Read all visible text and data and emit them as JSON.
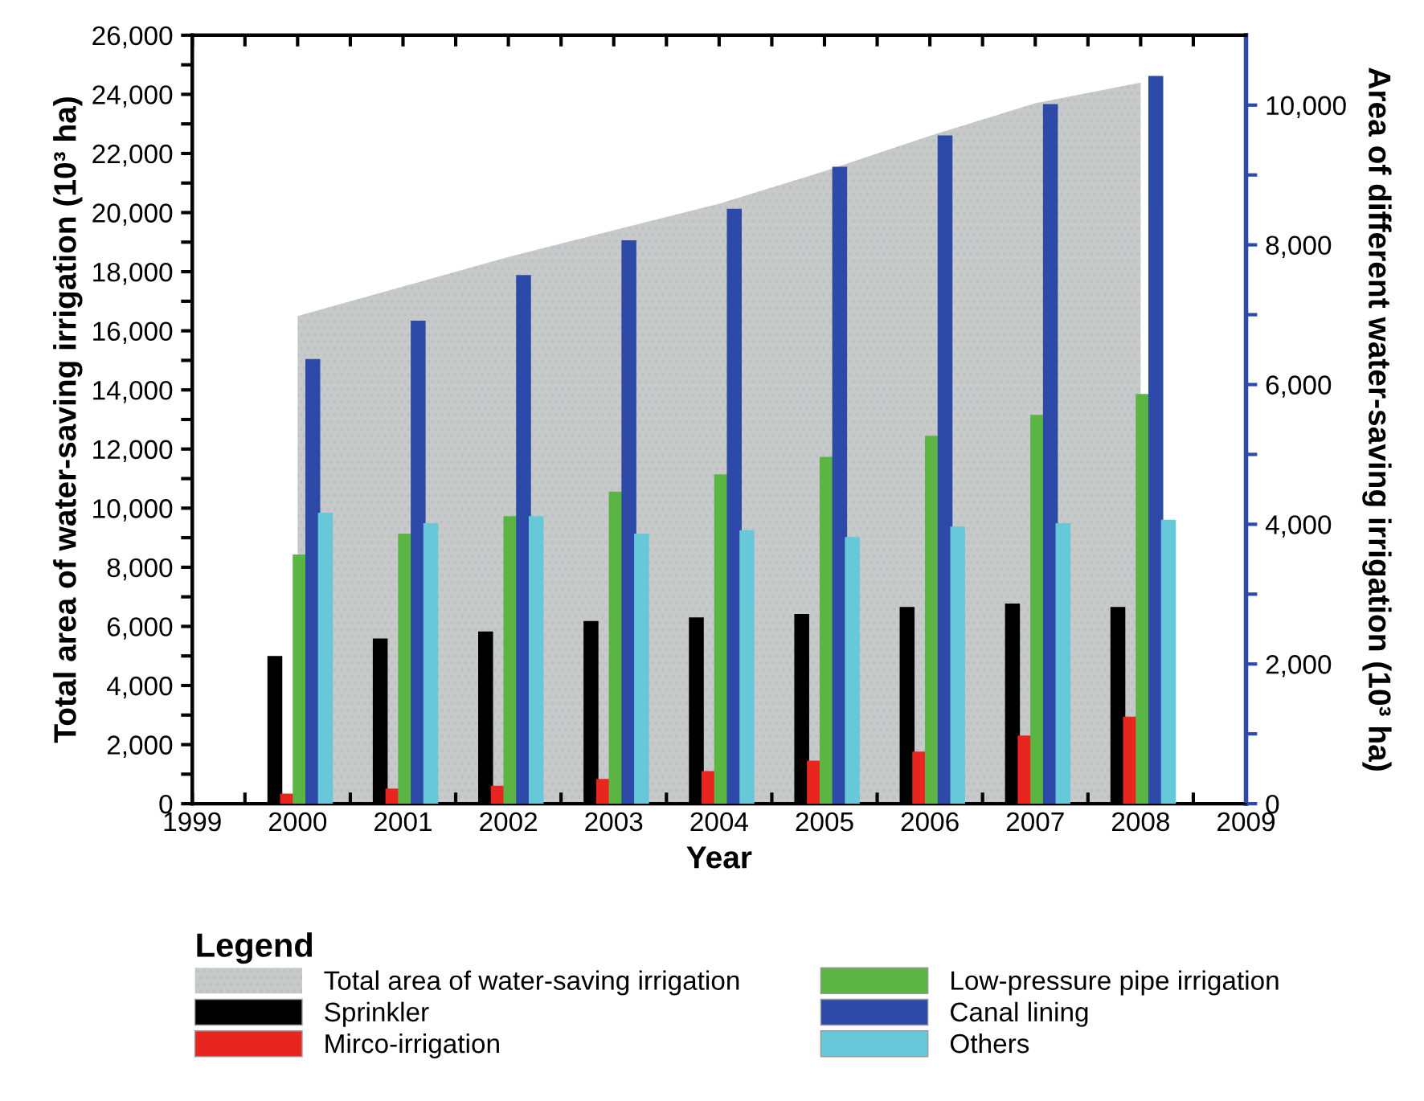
{
  "chart_data": {
    "type": "bar",
    "xlabel": "Year",
    "ylabel": "Total area of water-saving irrigation (10³ ha)",
    "y2label": "Area of different water-saving irrigation (10³ ha)",
    "legend_title": "Legend",
    "legend": "bottom",
    "grid": false,
    "x": [
      2000,
      2001,
      2002,
      2003,
      2004,
      2005,
      2006,
      2007,
      2008
    ],
    "xlim": [
      1999,
      2009
    ],
    "xticks": [
      1999,
      {
        "value": 1999.5,
        "label": null
      },
      2000,
      {
        "value": 2000.5,
        "label": null
      },
      2001,
      {
        "value": 2001.5,
        "label": null
      },
      2002,
      {
        "value": 2002.5,
        "label": null
      },
      2003,
      {
        "value": 2003.5,
        "label": null
      },
      2004,
      {
        "value": 2004.5,
        "label": null
      },
      2005,
      {
        "value": 2005.5,
        "label": null
      },
      2006,
      {
        "value": 2006.5,
        "label": null
      },
      2007,
      {
        "value": 2007.5,
        "label": null
      },
      2008,
      {
        "value": 2008.5,
        "label": null
      },
      2009
    ],
    "ylim": [
      0,
      26000
    ],
    "yticks": [
      {
        "value": 0,
        "label": "0"
      },
      {
        "value": 1000,
        "label": null
      },
      {
        "value": 2000,
        "label": "2,000"
      },
      {
        "value": 3000,
        "label": null
      },
      {
        "value": 4000,
        "label": "4,000"
      },
      {
        "value": 5000,
        "label": null
      },
      {
        "value": 6000,
        "label": "6,000"
      },
      {
        "value": 7000,
        "label": null
      },
      {
        "value": 8000,
        "label": "8,000"
      },
      {
        "value": 9000,
        "label": null
      },
      {
        "value": 10000,
        "label": "10,000"
      },
      {
        "value": 11000,
        "label": null
      },
      {
        "value": 12000,
        "label": "12,000"
      },
      {
        "value": 13000,
        "label": null
      },
      {
        "value": 14000,
        "label": "14,000"
      },
      {
        "value": 15000,
        "label": null
      },
      {
        "value": 16000,
        "label": "16,000"
      },
      {
        "value": 17000,
        "label": null
      },
      {
        "value": 18000,
        "label": "18,000"
      },
      {
        "value": 19000,
        "label": null
      },
      {
        "value": 20000,
        "label": "20,000"
      },
      {
        "value": 21000,
        "label": null
      },
      {
        "value": 22000,
        "label": "22,000"
      },
      {
        "value": 23000,
        "label": null
      },
      {
        "value": 24000,
        "label": "24,000"
      },
      {
        "value": 25000,
        "label": null
      },
      {
        "value": 26000,
        "label": "26,000"
      }
    ],
    "y2lim": [
      0,
      11000
    ],
    "y2ticks": [
      {
        "value": 0,
        "label": "0"
      },
      {
        "value": 1000,
        "label": null
      },
      {
        "value": 2000,
        "label": "2,000"
      },
      {
        "value": 3000,
        "label": null
      },
      {
        "value": 4000,
        "label": "4,000"
      },
      {
        "value": 5000,
        "label": null
      },
      {
        "value": 6000,
        "label": "6,000"
      },
      {
        "value": 7000,
        "label": null
      },
      {
        "value": 8000,
        "label": "8,000"
      },
      {
        "value": 9000,
        "label": null
      },
      {
        "value": 10000,
        "label": "10,000"
      }
    ],
    "series": [
      {
        "name": "Total area of water-saving irrigation",
        "type": "area",
        "color": "#c9c9c9",
        "values": [
          16500,
          17500,
          18500,
          19400,
          20300,
          21400,
          22600,
          23700,
          24400
        ]
      },
      {
        "name": "Sprinkler",
        "axis": "y2",
        "color": "#000000",
        "values": [
          2100,
          2350,
          2450,
          2600,
          2650,
          2700,
          2800,
          2850,
          2800
        ]
      },
      {
        "name": "Mirco-irrigation",
        "axis": "y2",
        "color": "#e8251f",
        "values": [
          130,
          200,
          240,
          340,
          450,
          600,
          730,
          960,
          1230
        ]
      },
      {
        "name": "Low-pressure pipe irrigation",
        "axis": "y2",
        "color": "#5bb543",
        "values": [
          3550,
          3850,
          4100,
          4450,
          4700,
          4950,
          5250,
          5550,
          5850
        ]
      },
      {
        "name": "Canal lining",
        "axis": "y2",
        "color": "#2e4aa8",
        "values": [
          6350,
          6900,
          7550,
          8050,
          8500,
          9100,
          9550,
          10000,
          10400
        ]
      },
      {
        "name": "Others",
        "axis": "y2",
        "color": "#66c8d8",
        "values": [
          4150,
          4000,
          4100,
          3850,
          3900,
          3800,
          3950,
          4000,
          4050
        ]
      }
    ]
  }
}
